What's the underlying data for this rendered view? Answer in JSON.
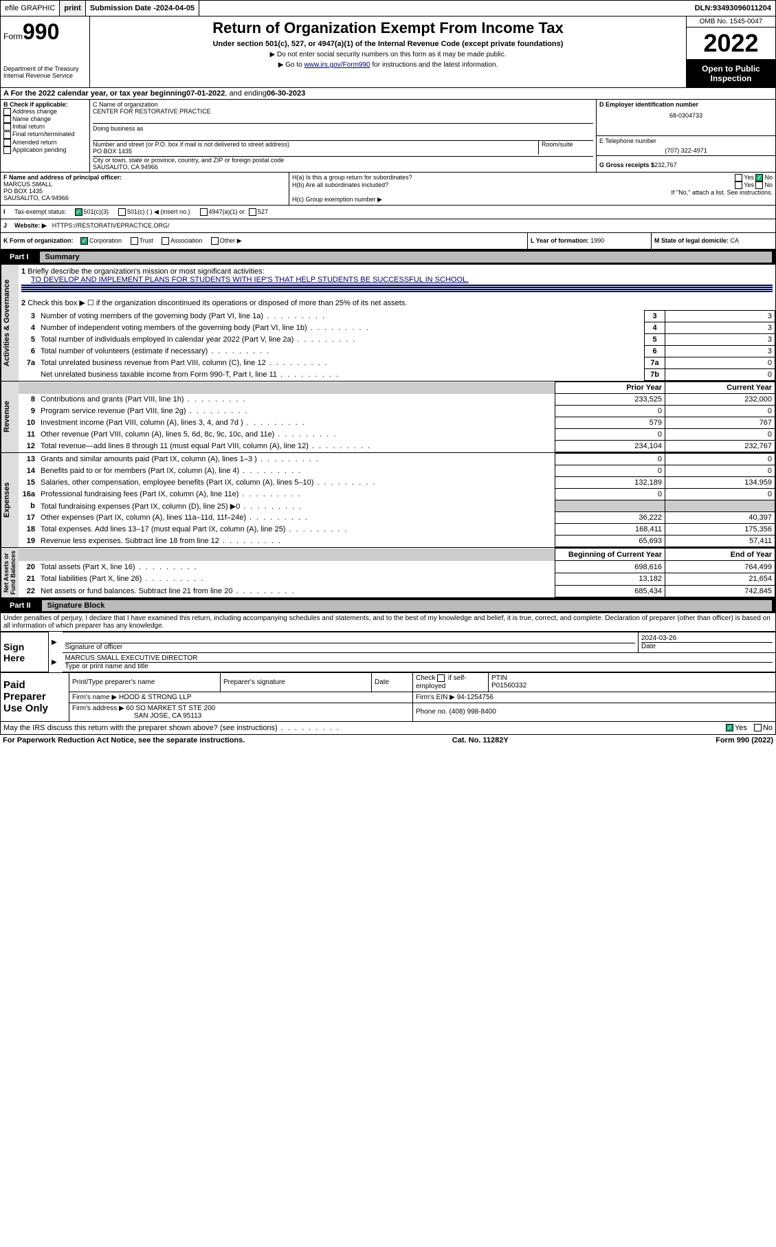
{
  "topbar": {
    "efile": "efile GRAPHIC",
    "print": "print",
    "subdate_lbl": "Submission Date - ",
    "subdate": "2024-04-05",
    "dln_lbl": "DLN: ",
    "dln": "93493096011204"
  },
  "header": {
    "form_word": "Form",
    "form_no": "990",
    "dept": "Department of the Treasury\nInternal Revenue Service",
    "title": "Return of Organization Exempt From Income Tax",
    "sub": "Under section 501(c), 527, or 4947(a)(1) of the Internal Revenue Code (except private foundations)",
    "instr1": "▶ Do not enter social security numbers on this form as it may be made public.",
    "instr2_pre": "▶ Go to ",
    "instr2_link": "www.irs.gov/Form990",
    "instr2_post": " for instructions and the latest information.",
    "omb": "OMB No. 1545-0047",
    "year": "2022",
    "open": "Open to Public Inspection"
  },
  "period": {
    "text_a": "A For the 2022 calendar year, or tax year beginning ",
    "begin": "07-01-2022",
    "mid": " , and ending ",
    "end": "06-30-2023"
  },
  "B": {
    "hdr": "B Check if applicable:",
    "items": [
      "Address change",
      "Name change",
      "Initial return",
      "Final return/terminated",
      "Amended return",
      "Application pending"
    ]
  },
  "C": {
    "lbl": "C Name of organization",
    "name": "CENTER FOR RESTORATIVE PRACTICE",
    "dba_lbl": "Doing business as",
    "addr_lbl": "Number and street (or P.O. box if mail is not delivered to street address)",
    "room": "Room/suite",
    "addr": "PO BOX 1435",
    "city_lbl": "City or town, state or province, country, and ZIP or foreign postal code",
    "city": "SAUSALITO, CA  94966"
  },
  "D": {
    "lbl": "D Employer identification number",
    "ein": "68-0304733"
  },
  "E": {
    "lbl": "E Telephone number",
    "tel": "(707) 322-4971"
  },
  "G": {
    "lbl": "G Gross receipts $",
    "val": "232,767"
  },
  "F": {
    "lbl": "F Name and address of principal officer:",
    "name": "MARCUS SMALL",
    "addr1": "PO BOX 1435",
    "addr2": "SAUSALITO, CA  94966"
  },
  "H": {
    "a": "H(a)  Is this a group return for subordinates?",
    "b": "H(b)  Are all subordinates included?",
    "note": "If \"No,\" attach a list. See instructions.",
    "c": "H(c)  Group exemption number ▶",
    "yes": "Yes",
    "no": "No"
  },
  "I": {
    "lbl": "I",
    "txt": "Tax-exempt status:",
    "o1": "501(c)(3)",
    "o2": "501(c) (   ) ◀ (insert no.)",
    "o3": "4947(a)(1) or",
    "o4": "527"
  },
  "J": {
    "lbl": "J",
    "txt": "Website: ▶",
    "url": "HTTPS://RESTORATIVEPRACTICE.ORG/"
  },
  "K": {
    "lbl": "K Form of organization:",
    "o1": "Corporation",
    "o2": "Trust",
    "o3": "Association",
    "o4": "Other ▶"
  },
  "L": {
    "lbl": "L Year of formation: ",
    "val": "1990"
  },
  "M": {
    "lbl": "M State of legal domicile: ",
    "val": "CA"
  },
  "partI": {
    "label": "Part I",
    "title": "Summary"
  },
  "summary": {
    "q1": "Briefly describe the organization's mission or most significant activities:",
    "mission": "TO DEVELOP AND IMPLEMENT PLANS FOR STUDENTS WITH IEP'S THAT HELP STUDENTS BE SUCCESSFUL IN SCHOOL.",
    "q2": "Check this box ▶ ☐  if the organization discontinued its operations or disposed of more than 25% of its net assets.",
    "rows_top": [
      {
        "n": "3",
        "t": "Number of voting members of the governing body (Part VI, line 1a)",
        "b": "3",
        "v": "3"
      },
      {
        "n": "4",
        "t": "Number of independent voting members of the governing body (Part VI, line 1b)",
        "b": "4",
        "v": "3"
      },
      {
        "n": "5",
        "t": "Total number of individuals employed in calendar year 2022 (Part V, line 2a)",
        "b": "5",
        "v": "3"
      },
      {
        "n": "6",
        "t": "Total number of volunteers (estimate if necessary)",
        "b": "6",
        "v": "3"
      },
      {
        "n": "7a",
        "t": "Total unrelated business revenue from Part VIII, column (C), line 12",
        "b": "7a",
        "v": "0"
      },
      {
        "n": "",
        "t": "Net unrelated business taxable income from Form 990-T, Part I, line 11",
        "b": "7b",
        "v": "0"
      }
    ],
    "col_prior": "Prior Year",
    "col_current": "Current Year",
    "revenue": [
      {
        "n": "8",
        "t": "Contributions and grants (Part VIII, line 1h)",
        "p": "233,525",
        "c": "232,000"
      },
      {
        "n": "9",
        "t": "Program service revenue (Part VIII, line 2g)",
        "p": "0",
        "c": "0"
      },
      {
        "n": "10",
        "t": "Investment income (Part VIII, column (A), lines 3, 4, and 7d )",
        "p": "579",
        "c": "767"
      },
      {
        "n": "11",
        "t": "Other revenue (Part VIII, column (A), lines 5, 6d, 8c, 9c, 10c, and 11e)",
        "p": "0",
        "c": "0"
      },
      {
        "n": "12",
        "t": "Total revenue—add lines 8 through 11 (must equal Part VIII, column (A), line 12)",
        "p": "234,104",
        "c": "232,767"
      }
    ],
    "expenses": [
      {
        "n": "13",
        "t": "Grants and similar amounts paid (Part IX, column (A), lines 1–3 )",
        "p": "0",
        "c": "0"
      },
      {
        "n": "14",
        "t": "Benefits paid to or for members (Part IX, column (A), line 4)",
        "p": "0",
        "c": "0"
      },
      {
        "n": "15",
        "t": "Salaries, other compensation, employee benefits (Part IX, column (A), lines 5–10)",
        "p": "132,189",
        "c": "134,959"
      },
      {
        "n": "16a",
        "t": "Professional fundraising fees (Part IX, column (A), line 11e)",
        "p": "0",
        "c": "0"
      },
      {
        "n": "b",
        "t": "Total fundraising expenses (Part IX, column (D), line 25) ▶0",
        "p": "",
        "c": ""
      },
      {
        "n": "17",
        "t": "Other expenses (Part IX, column (A), lines 11a–11d, 11f–24e)",
        "p": "36,222",
        "c": "40,397"
      },
      {
        "n": "18",
        "t": "Total expenses. Add lines 13–17 (must equal Part IX, column (A), line 25)",
        "p": "168,411",
        "c": "175,356"
      },
      {
        "n": "19",
        "t": "Revenue less expenses. Subtract line 18 from line 12",
        "p": "65,693",
        "c": "57,411"
      }
    ],
    "col_begin": "Beginning of Current Year",
    "col_end": "End of Year",
    "netassets": [
      {
        "n": "20",
        "t": "Total assets (Part X, line 16)",
        "p": "698,616",
        "c": "764,499"
      },
      {
        "n": "21",
        "t": "Total liabilities (Part X, line 26)",
        "p": "13,182",
        "c": "21,654"
      },
      {
        "n": "22",
        "t": "Net assets or fund balances. Subtract line 21 from line 20",
        "p": "685,434",
        "c": "742,845"
      }
    ],
    "sides": {
      "ag": "Activities & Governance",
      "rev": "Revenue",
      "exp": "Expenses",
      "na": "Net Assets or\nFund Balances"
    }
  },
  "partII": {
    "label": "Part II",
    "title": "Signature Block",
    "decl": "Under penalties of perjury, I declare that I have examined this return, including accompanying schedules and statements, and to the best of my knowledge and belief, it is true, correct, and complete. Declaration of preparer (other than officer) is based on all information of which preparer has any knowledge."
  },
  "sign": {
    "here": "Sign Here",
    "sig_lbl": "Signature of officer",
    "date": "2024-03-26",
    "date_lbl": "Date",
    "name": "MARCUS SMALL  EXECUTIVE DIRECTOR",
    "name_lbl": "Type or print name and title"
  },
  "paid": {
    "hdr": "Paid Preparer Use Only",
    "h1": "Print/Type preparer's name",
    "h2": "Preparer's signature",
    "h3": "Date",
    "h4_a": "Check",
    "h4_b": "if self-employed",
    "h5": "PTIN",
    "ptin": "P01560332",
    "firm_lbl": "Firm's name   ▶",
    "firm": "HOOD & STRONG LLP",
    "ein_lbl": "Firm's EIN ▶",
    "ein": "94-1254756",
    "addr_lbl": "Firm's address ▶",
    "addr1": "60 SO MARKET ST STE 200",
    "addr2": "SAN JOSE, CA  95113",
    "phone_lbl": "Phone no.",
    "phone": "(408) 998-8400"
  },
  "bottom": {
    "q": "May the IRS discuss this return with the preparer shown above? (see instructions)",
    "yes": "Yes",
    "no": "No",
    "pra": "For Paperwork Reduction Act Notice, see the separate instructions.",
    "cat": "Cat. No. 11282Y",
    "form": "Form 990 (2022)"
  }
}
